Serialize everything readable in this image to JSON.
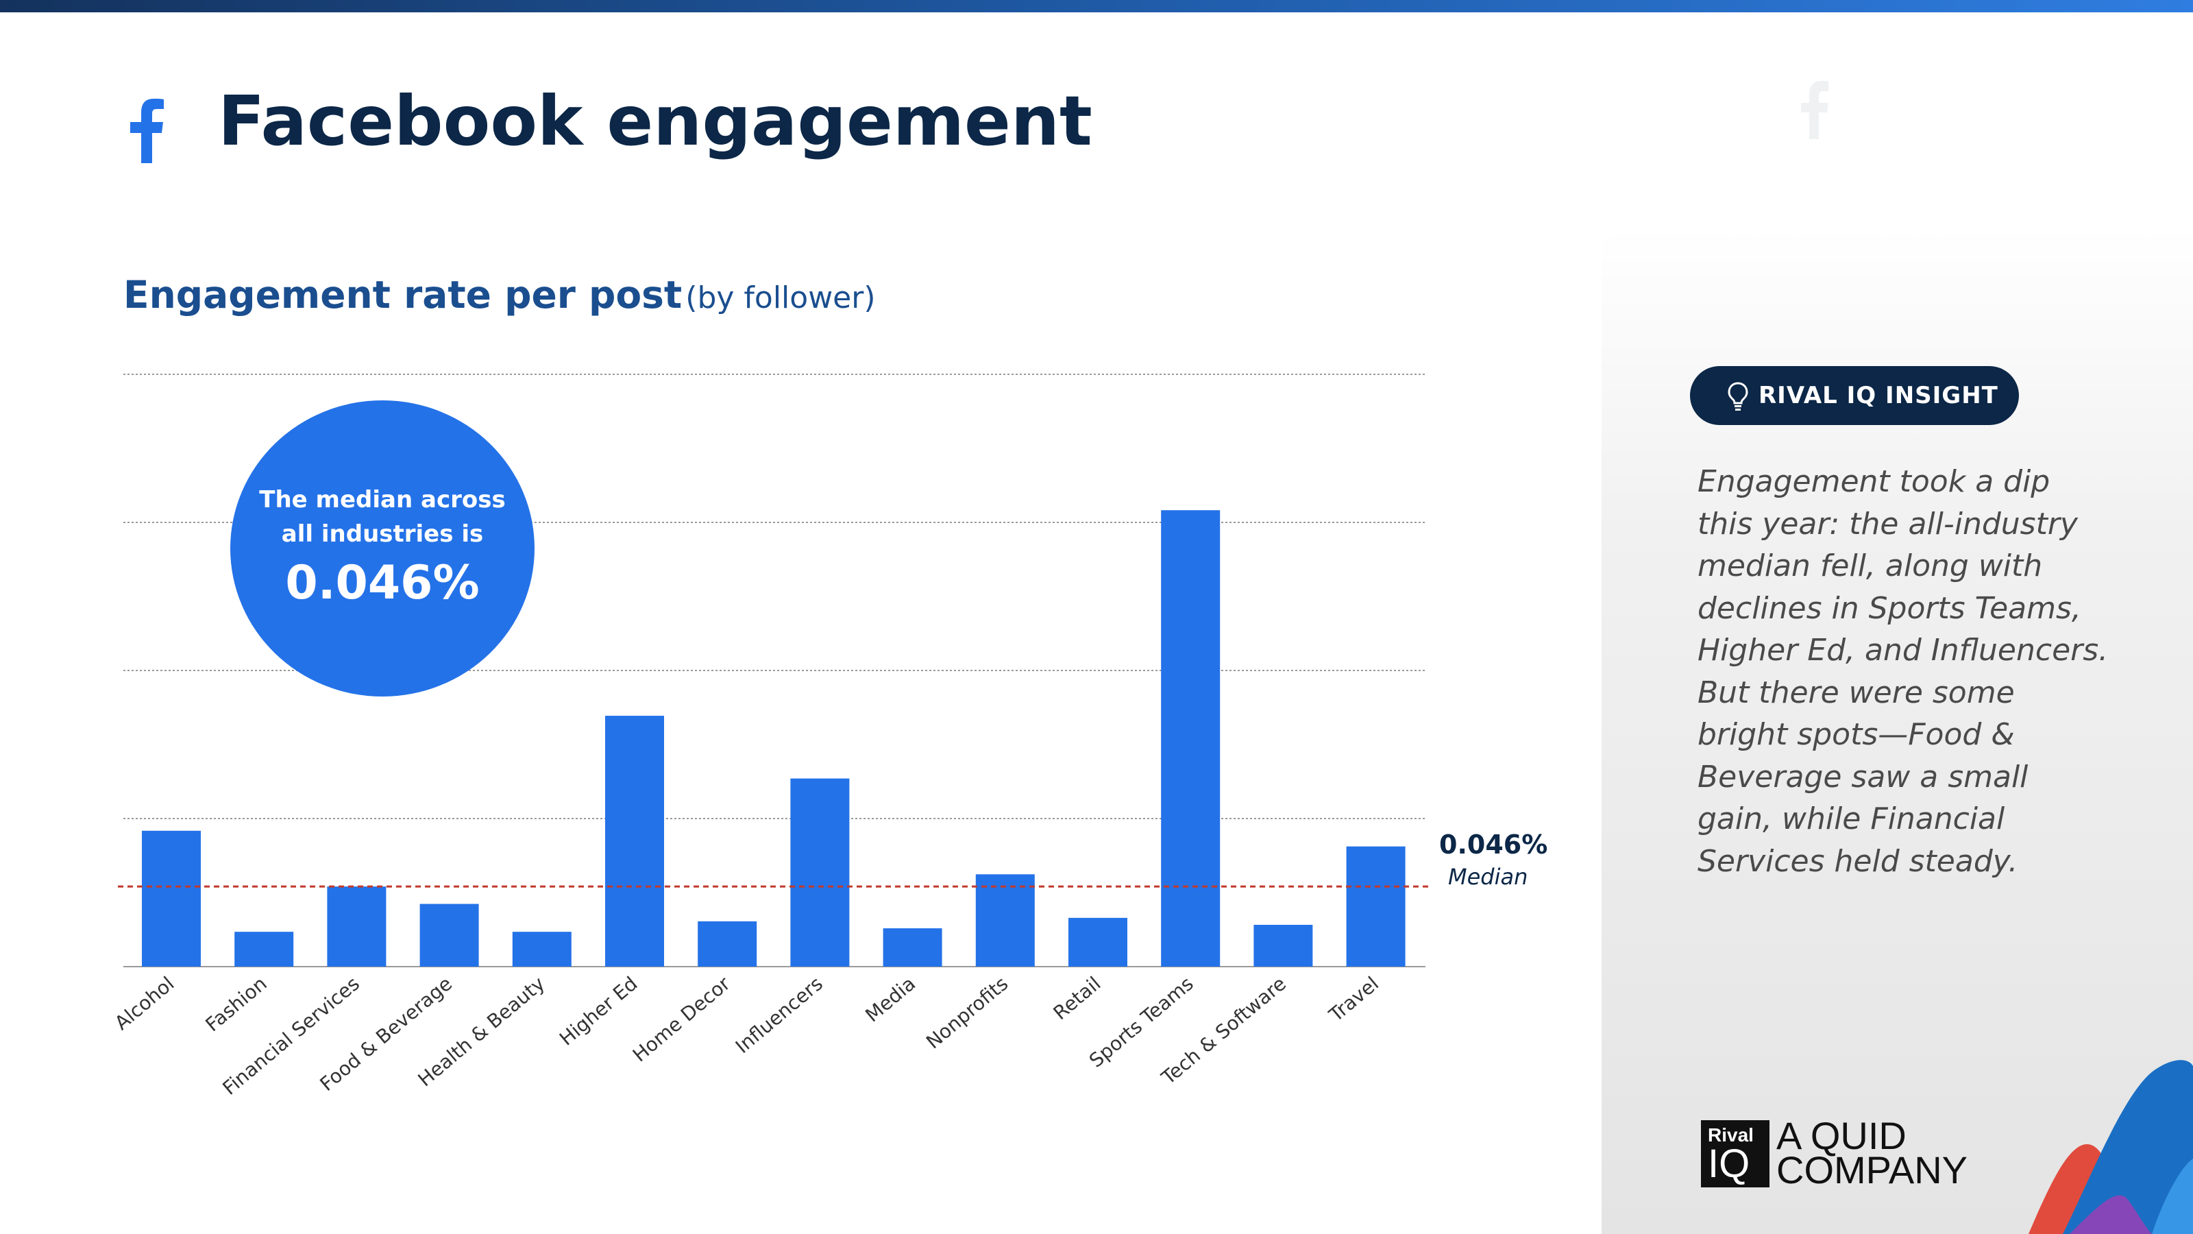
{
  "page_title": "Facebook engagement",
  "chart_title": {
    "main": "Engagement rate per post",
    "note": "(by follower)"
  },
  "median_callout": {
    "line1": "The median across",
    "line2": "all industries is",
    "value": "0.046%"
  },
  "median_marker": {
    "value_label": "0.046%",
    "label": "Median"
  },
  "insight": {
    "badge": "RIVAL IQ INSIGHT",
    "text": "Engagement took a dip this year: the all-industry median fell, along with declines in Sports Teams, Higher Ed, and Influencers. But there were some bright spots—Food & Beverage saw a small gain, while Financial Services held steady."
  },
  "branding": {
    "logo_top": "Rival",
    "logo_bottom": "IQ",
    "tagline": "A QUID\nCOMPANY"
  },
  "icons": [
    "facebook-icon",
    "lightbulb-icon"
  ],
  "colors": {
    "bar": "#2472e8",
    "median_line": "#c0392b",
    "title": "#0c2747",
    "subtitle": "#1a4e8f",
    "badge_bg": "#0c2747"
  },
  "chart_data": {
    "type": "bar",
    "title": "Engagement rate per post (by follower)",
    "xlabel": "",
    "ylabel": "",
    "categories": [
      "Alcohol",
      "Fashion",
      "Financial Services",
      "Food & Beverage",
      "Health & Beauty",
      "Higher Ed",
      "Home Decor",
      "Influencers",
      "Media",
      "Nonprofits",
      "Retail",
      "Sports Teams",
      "Tech & Software",
      "Travel"
    ],
    "values": [
      0.078,
      0.02,
      0.046,
      0.036,
      0.02,
      0.144,
      0.026,
      0.108,
      0.022,
      0.053,
      0.028,
      0.262,
      0.024,
      0.069
    ],
    "median": 0.046,
    "ylim": [
      0,
      0.34
    ],
    "gridlines": [
      0,
      0.085,
      0.17,
      0.255,
      0.34
    ],
    "grid": true,
    "y_tick_labels_shown": false
  }
}
